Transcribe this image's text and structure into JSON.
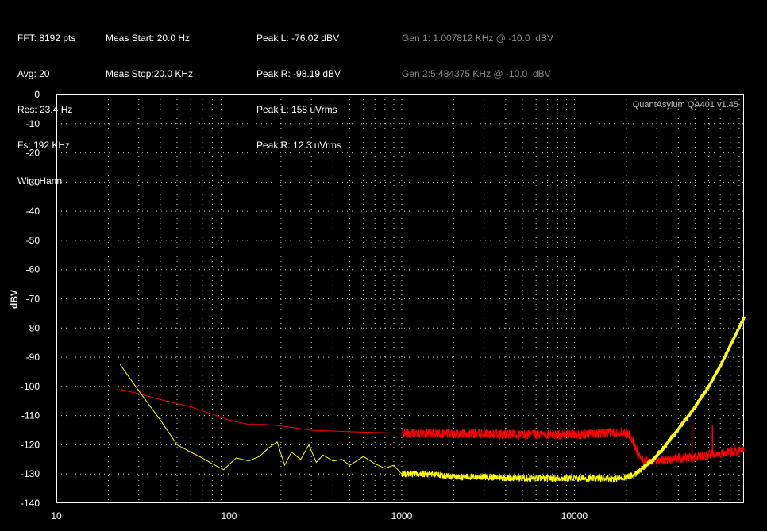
{
  "header": {
    "col1": [
      "FFT: 8192 pts",
      "Avg: 20",
      "Res: 23.4 Hz",
      "Fs: 192 KHz",
      "Win: Hann"
    ],
    "col2": [
      "Meas Start: 20.0 Hz",
      "Meas Stop:20.0 KHz"
    ],
    "col3": [
      "Peak L: -76.02 dBV",
      "Peak R: -98.19 dBV",
      "Peak L: 158 uVrms",
      "Peak R: 12.3 uVrms"
    ],
    "col4": [
      "Gen 1: 1.007812 KHz @ -10.0  dBV",
      "Gen 2:5.484375 KHz @ -10.0  dBV"
    ]
  },
  "watermark": "QuantAsylum QA401 v1.45",
  "colors": {
    "background": "#000000",
    "plot_border": "#ffffff",
    "grid": "#d0d0d0",
    "left_channel": "#ffff00",
    "right_channel": "#ff0000",
    "gen_text": "#8c8c8c"
  },
  "chart_data": {
    "type": "line",
    "title": "",
    "xlabel": "",
    "ylabel": "dBV",
    "x_scale": "log",
    "xlim": [
      10,
      96000
    ],
    "ylim": [
      -140,
      0
    ],
    "x_ticks": [
      10,
      100,
      1000,
      10000
    ],
    "x_tick_labels": [
      "10",
      "100",
      "1000",
      "10000"
    ],
    "y_ticks": [
      0,
      -10,
      -20,
      -30,
      -40,
      -50,
      -60,
      -70,
      -80,
      -90,
      -100,
      -110,
      -120,
      -130,
      -140
    ],
    "y_tick_labels": [
      "0",
      "-10",
      "-20",
      "-30",
      "-40",
      "-50",
      "-60",
      "-70",
      "-80",
      "-90",
      "-100",
      "-110",
      "-120",
      "-130",
      "-140"
    ],
    "grid": true,
    "series": [
      {
        "color": "#ffff00",
        "x": [
          23.4,
          30,
          40,
          50,
          60,
          70,
          80,
          93,
          110,
          130,
          150,
          170,
          190,
          210,
          230,
          260,
          290,
          320,
          350,
          400,
          450,
          500,
          600,
          700,
          800,
          900,
          1000,
          1500,
          2000,
          3000,
          5000,
          8000,
          12000,
          18000,
          22000,
          25000,
          28000,
          32000,
          36000,
          42000,
          50000,
          60000,
          70000,
          80000,
          96000
        ],
        "y": [
          -92.5,
          -101.5,
          -111.5,
          -120,
          -122.5,
          -124.5,
          -126.5,
          -128.5,
          -124.5,
          -125.5,
          -124,
          -121,
          -119,
          -127,
          -122.5,
          -125,
          -120,
          -126,
          -123.5,
          -125.5,
          -125,
          -127,
          -124,
          -126.5,
          -128,
          -127,
          -130,
          -130,
          -131,
          -131,
          -131.5,
          -131.5,
          -131.5,
          -131.5,
          -130.5,
          -128,
          -125.5,
          -122,
          -118,
          -113,
          -107,
          -100,
          -93,
          -86,
          -76.5
        ]
      },
      {
        "color": "#ff0000",
        "x": [
          23.4,
          30,
          40,
          60,
          80,
          100,
          130,
          160,
          200,
          300,
          500,
          1000,
          2000,
          5000,
          10000,
          15000,
          19000,
          21000,
          22500,
          25000,
          30000,
          35000,
          40000,
          48000,
          50000,
          60000,
          63000,
          70000,
          80000,
          96000
        ],
        "y": [
          -101,
          -102.5,
          -104.5,
          -107,
          -109.5,
          -111.5,
          -113,
          -113,
          -113.5,
          -115,
          -115.5,
          -116,
          -116,
          -116.5,
          -116.5,
          -116,
          -115.5,
          -116.5,
          -121,
          -125.5,
          -125.5,
          -125,
          -124.5,
          -124.5,
          -124,
          -123.5,
          -123,
          -123,
          -122.5,
          -121.5
        ]
      }
    ],
    "spikes": [
      {
        "series_color": "#ff0000",
        "x": 48000,
        "y": -113
      },
      {
        "series_color": "#ff0000",
        "x": 63000,
        "y": -113.5
      }
    ]
  }
}
